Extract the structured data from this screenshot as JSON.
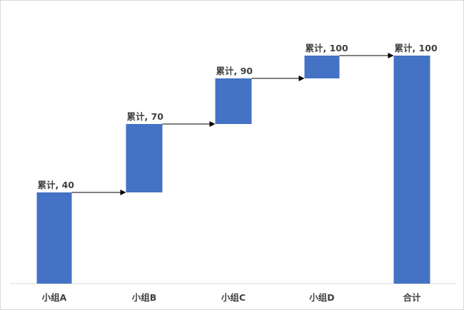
{
  "chart_data": {
    "type": "bar",
    "subtype": "waterfall",
    "categories": [
      "小组A",
      "小组B",
      "小组C",
      "小组D",
      "合计"
    ],
    "increments": [
      40,
      30,
      20,
      10,
      100
    ],
    "cumulative": [
      40,
      70,
      90,
      100,
      100
    ],
    "data_labels": [
      "累计, 40",
      "累计, 70",
      "累计, 90",
      "累计, 100",
      "累计, 100"
    ],
    "title": "",
    "xlabel": "",
    "ylabel": "",
    "ylim": [
      0,
      100
    ],
    "grid": false,
    "legend": "none",
    "connector_arrows": true,
    "colors": {
      "bar": "#4472C4",
      "arrow": "#000000",
      "axis": "#d9d9d9",
      "text": "#404040"
    }
  }
}
